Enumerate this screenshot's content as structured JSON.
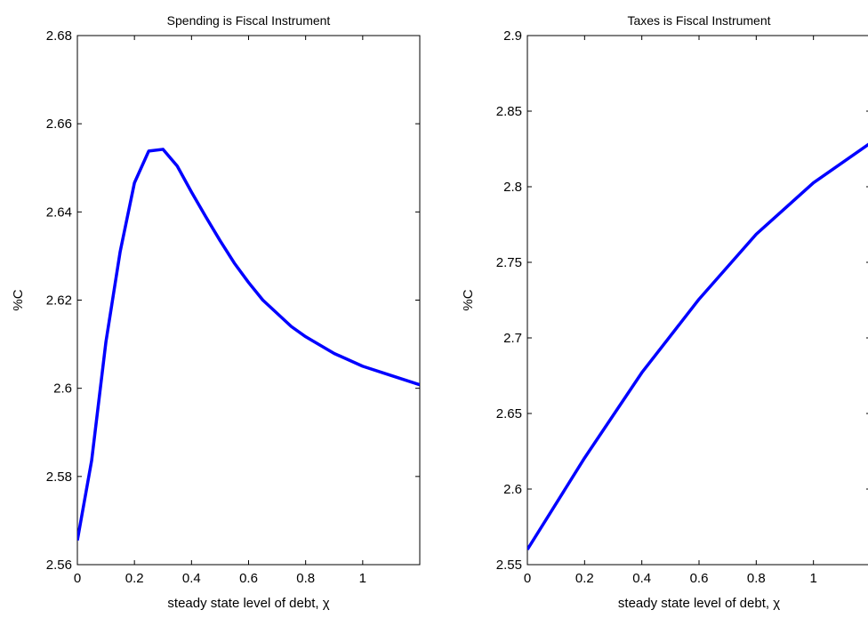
{
  "chart_data": [
    {
      "type": "line",
      "title": "Spending is Fiscal Instrument",
      "x_label": "steady state level of debt, χ",
      "y_label": "%C",
      "x": [
        0,
        0.05,
        0.1,
        0.15,
        0.2,
        0.25,
        0.3,
        0.35,
        0.4,
        0.45,
        0.5,
        0.55,
        0.6,
        0.65,
        0.7,
        0.75,
        0.8,
        0.9,
        1.0,
        1.1,
        1.2
      ],
      "series": [
        {
          "color": "#0000ff",
          "values": [
            2.5655,
            2.5836,
            2.6105,
            2.631,
            2.6466,
            2.6538,
            2.6542,
            2.6504,
            2.6445,
            2.6389,
            2.6335,
            2.6284,
            2.624,
            2.62,
            2.617,
            2.614,
            2.6117,
            2.6079,
            2.605,
            2.6029,
            2.6008
          ]
        }
      ],
      "xlim": [
        0,
        1.2
      ],
      "xticks": [
        0,
        0.2,
        0.4,
        0.6,
        0.8,
        1
      ],
      "ylim": [
        2.56,
        2.68
      ],
      "yticks": [
        2.56,
        2.58,
        2.6,
        2.62,
        2.64,
        2.66,
        2.68
      ]
    },
    {
      "type": "line",
      "title": "Taxes is Fiscal Instrument",
      "x_label": "steady state level of debt, χ",
      "y_label": "%C",
      "x": [
        0,
        0.2,
        0.4,
        0.6,
        0.8,
        1.0,
        1.2
      ],
      "series": [
        {
          "color": "#0000ff",
          "values": [
            2.56,
            2.6206,
            2.677,
            2.7256,
            2.7686,
            2.8026,
            2.829
          ]
        }
      ],
      "xlim": [
        0,
        1.2
      ],
      "xticks": [
        0,
        0.2,
        0.4,
        0.6,
        0.8,
        1
      ],
      "ylim": [
        2.55,
        2.9
      ],
      "yticks": [
        2.55,
        2.6,
        2.65,
        2.7,
        2.75,
        2.8,
        2.85,
        2.9
      ]
    }
  ]
}
